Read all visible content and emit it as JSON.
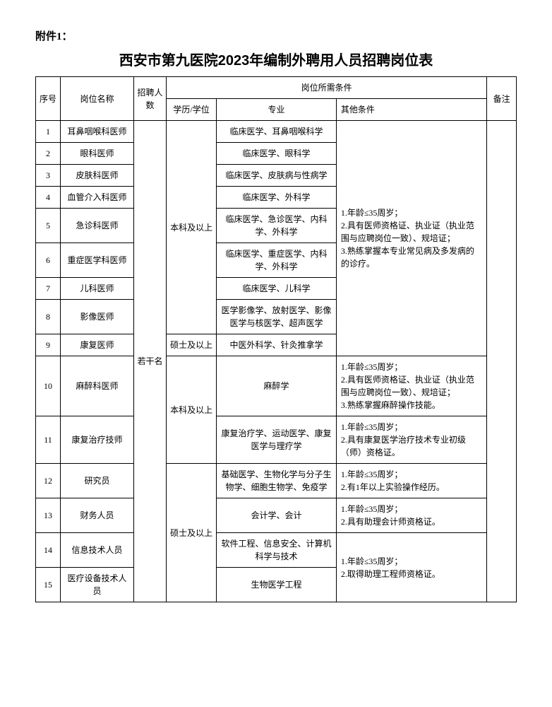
{
  "attachment_label": "附件1：",
  "title": "西安市第九医院2023年编制外聘用人员招聘岗位表",
  "headers": {
    "seq": "序号",
    "position": "岗位名称",
    "count": "招聘人数",
    "requirements": "岗位所需条件",
    "edu": "学历/学位",
    "major": "专业",
    "other": "其他条件",
    "remark": "备注"
  },
  "count_label": "若干名",
  "edu_labels": {
    "bachelor1": "本科及以上",
    "master1": "硕士及以上",
    "bachelor2": "本科及以上",
    "master2": "硕士及以上"
  },
  "rows": {
    "r1": {
      "seq": "1",
      "position": "耳鼻咽喉科医师",
      "major": "临床医学、耳鼻咽喉科学"
    },
    "r2": {
      "seq": "2",
      "position": "眼科医师",
      "major": "临床医学、眼科学"
    },
    "r3": {
      "seq": "3",
      "position": "皮肤科医师",
      "major": "临床医学、皮肤病与性病学"
    },
    "r4": {
      "seq": "4",
      "position": "血管介入科医师",
      "major": "临床医学、外科学"
    },
    "r5": {
      "seq": "5",
      "position": "急诊科医师",
      "major": "临床医学、急诊医学、内科学、外科学"
    },
    "r6": {
      "seq": "6",
      "position": "重症医学科医师",
      "major": "临床医学、重症医学、内科学、外科学"
    },
    "r7": {
      "seq": "7",
      "position": "儿科医师",
      "major": "临床医学、儿科学"
    },
    "r8": {
      "seq": "8",
      "position": "影像医师",
      "major": "医学影像学、放射医学、影像医学与核医学、超声医学"
    },
    "r9": {
      "seq": "9",
      "position": "康复医师",
      "major": "中医外科学、针灸推拿学"
    },
    "r10": {
      "seq": "10",
      "position": "麻醉科医师",
      "major": "麻醉学"
    },
    "r11": {
      "seq": "11",
      "position": "康复治疗技师",
      "major": "康复治疗学、运动医学、康复医学与理疗学"
    },
    "r12": {
      "seq": "12",
      "position": "研究员",
      "major": "基础医学、生物化学与分子生物学、细胞生物学、免疫学"
    },
    "r13": {
      "seq": "13",
      "position": "财务人员",
      "major": "会计学、会计"
    },
    "r14": {
      "seq": "14",
      "position": "信息技术人员",
      "major": "软件工程、信息安全、计算机科学与技术"
    },
    "r15": {
      "seq": "15",
      "position": "医疗设备技术人员",
      "major": "生物医学工程"
    }
  },
  "other_conditions": {
    "c1": "1.年龄≤35周岁；\n2.具有医师资格证、执业证（执业范围与应聘岗位一致）、规培证；\n3.熟练掌握本专业常见病及多发病的的诊疗。",
    "c2": "1.年龄≤35周岁；\n2.具有医师资格证、执业证（执业范围与应聘岗位一致）、规培证；\n3.熟练掌握麻醉操作技能。",
    "c3": "1.年龄≤35周岁；\n2.具有康复医学治疗技术专业初级（师）资格证。",
    "c4": "1.年龄≤35周岁；\n2.有1年以上实验操作经历。",
    "c5": "1.年龄≤35周岁；\n2.具有助理会计师资格证。",
    "c6": "1.年龄≤35周岁；\n2.取得助理工程师资格证。"
  },
  "style": {
    "font_family": "SimSun",
    "title_fontsize": 20,
    "body_fontsize": 12,
    "border_color": "#000000",
    "background_color": "#ffffff",
    "text_color": "#000000"
  }
}
